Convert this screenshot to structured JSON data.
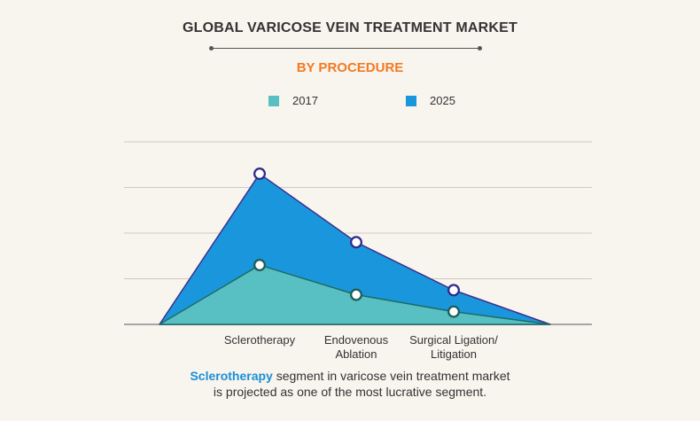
{
  "title": "GLOBAL VARICOSE VEIN TREATMENT MARKET",
  "subtitle": "BY PROCEDURE",
  "legend": [
    {
      "label": "2017",
      "color": "#58bfc2"
    },
    {
      "label": "2025",
      "color": "#1a97dc"
    }
  ],
  "caption": {
    "highlight": "Sclerotherapy",
    "rest_line1": " segment in varicose vein treatment market",
    "line2": "is projected as one of the most lucrative segment."
  },
  "chart_data": {
    "type": "area",
    "categories": [
      "Sclerotherapy",
      "Endovenous Ablation",
      "Surgical Ligation/ Litigation"
    ],
    "category_lines": [
      [
        "Sclerotherapy"
      ],
      [
        "Endovenous",
        "Ablation"
      ],
      [
        "Surgical Ligation/",
        "Litigation"
      ]
    ],
    "series": [
      {
        "name": "2017",
        "values": [
          1.3,
          0.65,
          0.28
        ],
        "color": "#58bfc2",
        "marker": "#1d5e57"
      },
      {
        "name": "2025",
        "values": [
          3.3,
          1.8,
          0.75
        ],
        "color": "#1a97dc",
        "marker": "#2f2b8c"
      }
    ],
    "ylim": [
      0,
      4
    ],
    "grid": true,
    "legend_position": "top-center",
    "colors": {
      "accent": "#f27a23",
      "highlight": "#1a8fd6",
      "outline_2025": "#3a2f8e",
      "outline_2017": "#1d6b66"
    }
  }
}
